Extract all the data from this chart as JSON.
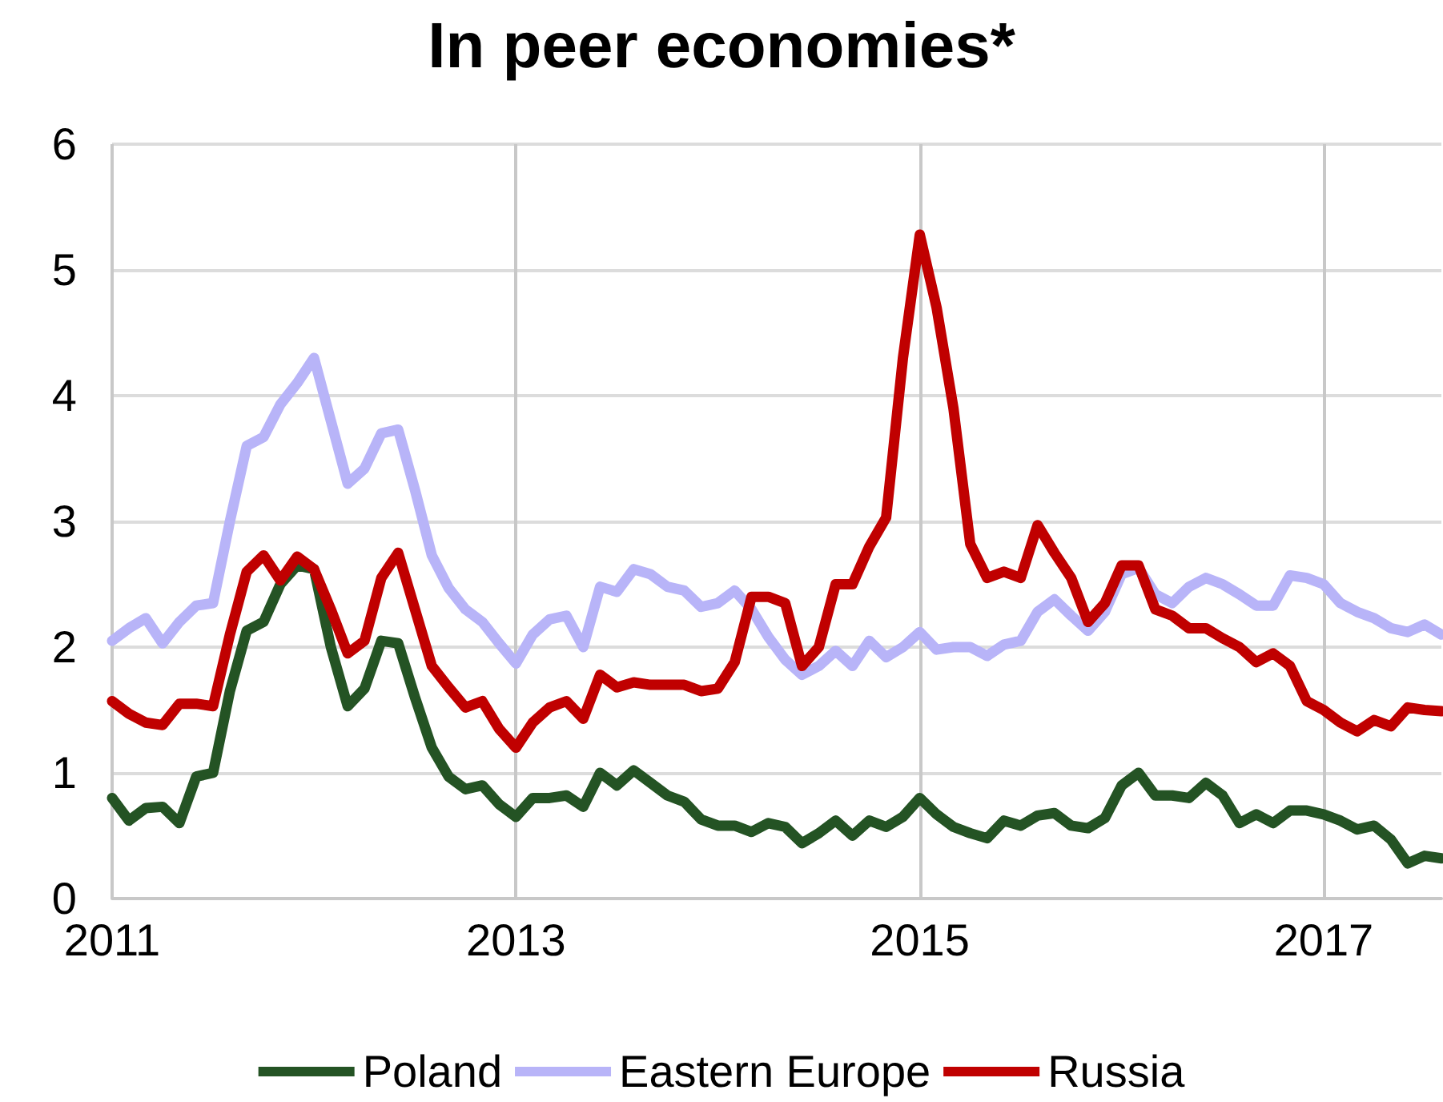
{
  "chart_data": {
    "type": "line",
    "title": "In peer economies*",
    "x": [
      "2011-01",
      "2011-02",
      "2011-03",
      "2011-04",
      "2011-05",
      "2011-06",
      "2011-07",
      "2011-08",
      "2011-09",
      "2011-10",
      "2011-11",
      "2011-12",
      "2012-01",
      "2012-02",
      "2012-03",
      "2012-04",
      "2012-05",
      "2012-06",
      "2012-07",
      "2012-08",
      "2012-09",
      "2012-10",
      "2012-11",
      "2012-12",
      "2013-01",
      "2013-02",
      "2013-03",
      "2013-04",
      "2013-05",
      "2013-06",
      "2013-07",
      "2013-08",
      "2013-09",
      "2013-10",
      "2013-11",
      "2013-12",
      "2014-01",
      "2014-02",
      "2014-03",
      "2014-04",
      "2014-05",
      "2014-06",
      "2014-07",
      "2014-08",
      "2014-09",
      "2014-10",
      "2014-11",
      "2014-12",
      "2015-01",
      "2015-02",
      "2015-03",
      "2015-04",
      "2015-05",
      "2015-06",
      "2015-07",
      "2015-08",
      "2015-09",
      "2015-10",
      "2015-11",
      "2015-12",
      "2016-01",
      "2016-02",
      "2016-03",
      "2016-04",
      "2016-05",
      "2016-06",
      "2016-07",
      "2016-08",
      "2016-09",
      "2016-10",
      "2016-11",
      "2016-12",
      "2017-01",
      "2017-02",
      "2017-03",
      "2017-04",
      "2017-05",
      "2017-06",
      "2017-07",
      "2017-08"
    ],
    "series": [
      {
        "name": "Poland",
        "color": "#245324",
        "values": [
          0.8,
          0.62,
          0.72,
          0.73,
          0.6,
          0.97,
          1.0,
          1.65,
          2.13,
          2.2,
          2.5,
          2.65,
          2.62,
          2.0,
          1.53,
          1.67,
          2.05,
          2.03,
          1.6,
          1.2,
          0.97,
          0.87,
          0.9,
          0.75,
          0.65,
          0.8,
          0.8,
          0.82,
          0.73,
          1.0,
          0.9,
          1.02,
          0.92,
          0.82,
          0.77,
          0.63,
          0.58,
          0.58,
          0.53,
          0.6,
          0.57,
          0.44,
          0.52,
          0.62,
          0.5,
          0.62,
          0.57,
          0.65,
          0.8,
          0.67,
          0.57,
          0.52,
          0.48,
          0.62,
          0.58,
          0.66,
          0.68,
          0.58,
          0.56,
          0.64,
          0.9,
          1.0,
          0.82,
          0.82,
          0.8,
          0.92,
          0.82,
          0.6,
          0.67,
          0.6,
          0.7,
          0.7,
          0.67,
          0.62,
          0.55,
          0.58,
          0.47,
          0.28,
          0.34,
          0.32
        ]
      },
      {
        "name": "Eastern Europe",
        "color": "#b8b4f8",
        "values": [
          2.05,
          2.15,
          2.23,
          2.03,
          2.2,
          2.33,
          2.35,
          3.0,
          3.6,
          3.67,
          3.93,
          4.1,
          4.3,
          3.8,
          3.3,
          3.42,
          3.7,
          3.73,
          3.25,
          2.73,
          2.47,
          2.3,
          2.2,
          2.03,
          1.87,
          2.1,
          2.22,
          2.25,
          2.0,
          2.48,
          2.44,
          2.62,
          2.58,
          2.48,
          2.45,
          2.32,
          2.35,
          2.45,
          2.3,
          2.08,
          1.9,
          1.78,
          1.85,
          1.97,
          1.85,
          2.05,
          1.92,
          2.0,
          2.12,
          1.98,
          2.0,
          2.0,
          1.93,
          2.02,
          2.05,
          2.28,
          2.38,
          2.25,
          2.13,
          2.28,
          2.58,
          2.63,
          2.42,
          2.35,
          2.48,
          2.55,
          2.5,
          2.42,
          2.33,
          2.33,
          2.57,
          2.55,
          2.5,
          2.35,
          2.28,
          2.23,
          2.15,
          2.12,
          2.18,
          2.1
        ]
      },
      {
        "name": "Russia",
        "color": "#c00000",
        "values": [
          1.57,
          1.47,
          1.4,
          1.38,
          1.55,
          1.55,
          1.53,
          2.1,
          2.6,
          2.73,
          2.53,
          2.72,
          2.62,
          2.3,
          1.95,
          2.05,
          2.55,
          2.75,
          2.3,
          1.85,
          1.68,
          1.52,
          1.57,
          1.35,
          1.2,
          1.4,
          1.52,
          1.57,
          1.43,
          1.78,
          1.68,
          1.72,
          1.7,
          1.7,
          1.7,
          1.65,
          1.67,
          1.88,
          2.4,
          2.4,
          2.35,
          1.85,
          2.0,
          2.5,
          2.5,
          2.8,
          3.03,
          4.3,
          5.28,
          4.7,
          3.9,
          2.82,
          2.55,
          2.6,
          2.55,
          2.97,
          2.75,
          2.55,
          2.2,
          2.35,
          2.65,
          2.65,
          2.3,
          2.25,
          2.15,
          2.15,
          2.07,
          2.0,
          1.88,
          1.95,
          1.85,
          1.57,
          1.5,
          1.4,
          1.33,
          1.42,
          1.37,
          1.52,
          1.5,
          1.49
        ]
      }
    ],
    "xlim": [
      "2011-01",
      "2017-08"
    ],
    "xticks": [
      "2011",
      "2013",
      "2015",
      "2017"
    ],
    "ylim": [
      0,
      6
    ],
    "yticks": [
      0,
      1,
      2,
      3,
      4,
      5,
      6
    ],
    "grid": true,
    "legend": "bottom",
    "marker": "none",
    "line_style": "solid"
  }
}
